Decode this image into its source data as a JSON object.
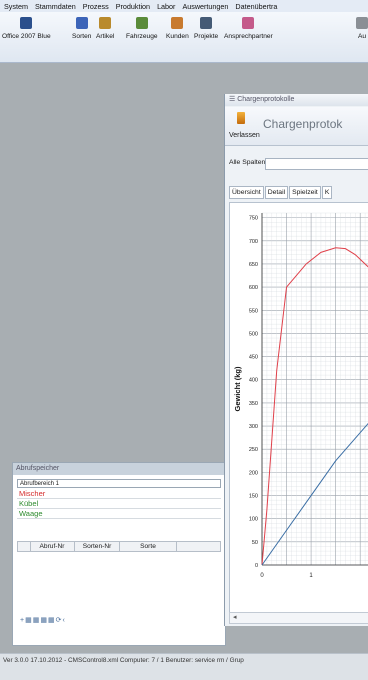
{
  "menu": [
    "System",
    "Stammdaten",
    "Prozess",
    "Produktion",
    "Labor",
    "Auswertungen",
    "Datenübertra"
  ],
  "toolbar": {
    "items": [
      {
        "label": "Office 2007 Blue",
        "icon": "floppy-disk-icon",
        "color": "#2b4f8c"
      },
      {
        "label": "Sorten",
        "icon": "sorten-icon",
        "color": "#3c64b8"
      },
      {
        "label": "Artikel",
        "icon": "artikel-icon",
        "color": "#b98a2c"
      },
      {
        "label": "Fahrzeuge",
        "icon": "truck-icon",
        "color": "#5a8b3a"
      },
      {
        "label": "Kunden",
        "icon": "customers-icon",
        "color": "#c87a2e"
      },
      {
        "label": "Projekte",
        "icon": "projects-icon",
        "color": "#445a75"
      },
      {
        "label": "Ansprechpartner",
        "icon": "contacts-icon",
        "color": "#c45a8a"
      },
      {
        "label": "Au",
        "icon": "more-icon",
        "color": "#8a8f95"
      }
    ]
  },
  "abrufspeicher": {
    "title": "Abrufspeicher",
    "bereich": "Abrufbereich 1",
    "legend": [
      {
        "label": "Mischer",
        "color": "#d42a2a"
      },
      {
        "label": "Kübel",
        "color": "#2e8b2e"
      },
      {
        "label": "Waage",
        "color": "#2e8b2e"
      }
    ],
    "columns": [
      "Abruf-Nr",
      "Sorten-Nr",
      "Sorte"
    ]
  },
  "window": {
    "title": "Chargenprotokolle",
    "heading": "Chargenprotok",
    "verlassen": "Verlassen",
    "filter_label": "Alle Spalten -",
    "tabs": [
      "Übersicht",
      "Detail",
      "Spielzeit",
      "K"
    ]
  },
  "chart_data": {
    "type": "line",
    "ylabel": "Gewicht (kg)",
    "xlabel": "",
    "ylim": [
      0,
      760
    ],
    "xlim": [
      0,
      2.2
    ],
    "yticks": [
      0,
      50,
      100,
      150,
      200,
      250,
      300,
      350,
      400,
      450,
      500,
      550,
      600,
      650,
      700,
      750
    ],
    "xticks": [
      0,
      1
    ],
    "grid": true,
    "series": [
      {
        "color": "#e0404a",
        "x": [
          0,
          0.1,
          0.3,
          0.5,
          0.7,
          0.9,
          1.2,
          1.5,
          1.7,
          1.9,
          2.2
        ],
        "y": [
          0,
          120,
          420,
          600,
          625,
          650,
          675,
          685,
          683,
          670,
          640
        ]
      },
      {
        "color": "#3a6ea5",
        "x": [
          0,
          0.5,
          1.0,
          1.5,
          2.2
        ],
        "y": [
          0,
          75,
          150,
          225,
          310
        ]
      }
    ]
  },
  "status": "Ver 3.0.0 17.10.2012 - CMSControl8.xml Computer: 7 / 1   Benutzer: service rm / Grup"
}
